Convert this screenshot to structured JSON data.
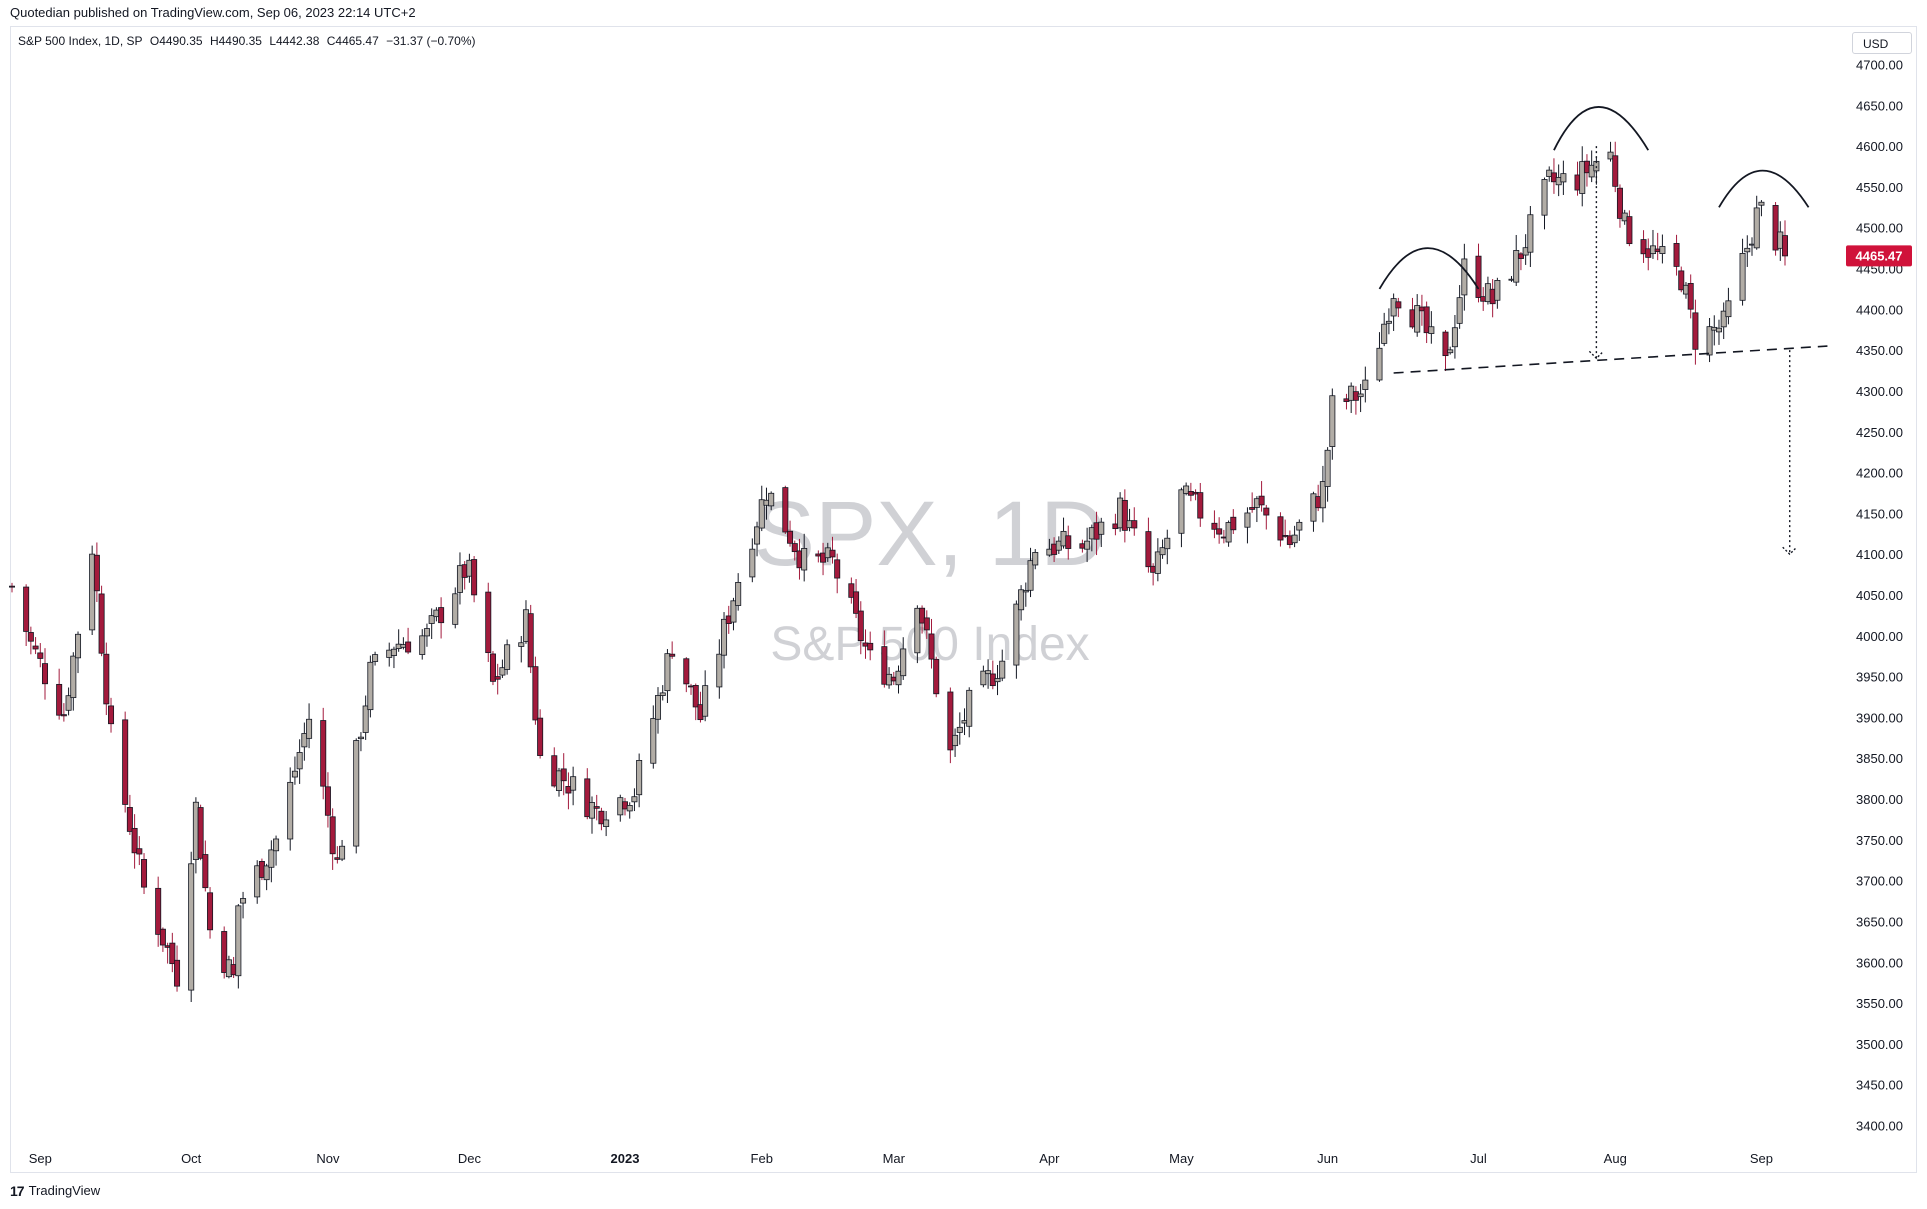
{
  "header": {
    "published": "Quotedian published on TradingView.com, Sep 06, 2023 22:14 UTC+2"
  },
  "legend": {
    "symbol": "S&P 500 Index, 1D, SP",
    "open": "O4490.35",
    "high": "H4490.35",
    "low": "L4442.38",
    "close": "C4465.47",
    "change": "−31.37 (−0.70%)"
  },
  "currency": "USD",
  "watermark": {
    "line1": "SPX, 1D",
    "line2": "S&P 500 Index"
  },
  "last_price_label": "4465.47",
  "footer": {
    "brand": "TradingView",
    "logo_text": "17"
  },
  "colors": {
    "up_candle_fill": "#b2ada6",
    "down_candle_fill": "#a31a3c",
    "candle_border": "#131722",
    "price_label_bg": "#d0123a",
    "watermark": "rgba(120,123,134,0.35)"
  },
  "chart_data": {
    "type": "candlestick",
    "y_axis": {
      "range": [
        3370,
        4730
      ],
      "ticks": [
        3400,
        3450,
        3500,
        3550,
        3600,
        3650,
        3700,
        3750,
        3800,
        3850,
        3900,
        3950,
        4000,
        4050,
        4100,
        4150,
        4200,
        4250,
        4300,
        4350,
        4400,
        4450,
        4500,
        4550,
        4600,
        4650,
        4700
      ],
      "tick_labels": [
        "3400.00",
        "3450.00",
        "3500.00",
        "3550.00",
        "3600.00",
        "3650.00",
        "3700.00",
        "3750.00",
        "3800.00",
        "3850.00",
        "3900.00",
        "3950.00",
        "4000.00",
        "4050.00",
        "4100.00",
        "4150.00",
        "4200.00",
        "4250.00",
        "4300.00",
        "4350.00",
        "4400.00",
        "4450.00",
        "4500.00",
        "4550.00",
        "4600.00",
        "4650.00",
        "4700.00"
      ]
    },
    "x_axis": {
      "start": "2022-08-26",
      "end": "2023-09-06",
      "labels": [
        {
          "label": "Sep",
          "date": "2022-09-01",
          "bold": false
        },
        {
          "label": "Oct",
          "date": "2022-10-03",
          "bold": false
        },
        {
          "label": "Nov",
          "date": "2022-11-01",
          "bold": false
        },
        {
          "label": "Dec",
          "date": "2022-12-01",
          "bold": false
        },
        {
          "label": "2023",
          "date": "2023-01-03",
          "bold": true
        },
        {
          "label": "Feb",
          "date": "2023-02-01",
          "bold": false
        },
        {
          "label": "Mar",
          "date": "2023-03-01",
          "bold": false
        },
        {
          "label": "Apr",
          "date": "2023-04-03",
          "bold": false
        },
        {
          "label": "May",
          "date": "2023-05-01",
          "bold": false
        },
        {
          "label": "Jun",
          "date": "2023-06-01",
          "bold": false
        },
        {
          "label": "Jul",
          "date": "2023-07-03",
          "bold": false
        },
        {
          "label": "Aug",
          "date": "2023-08-01",
          "bold": false
        },
        {
          "label": "Sep",
          "date": "2023-09-01",
          "bold": false
        }
      ]
    },
    "series": [
      {
        "close_path": [
          [
            "2022-08-26",
            4060
          ],
          [
            "2022-08-30",
            3990
          ],
          [
            "2022-09-06",
            3905
          ],
          [
            "2022-09-12",
            4110
          ],
          [
            "2022-09-16",
            3875
          ],
          [
            "2022-09-23",
            3690
          ],
          [
            "2022-09-30",
            3585
          ],
          [
            "2022-10-04",
            3790
          ],
          [
            "2022-10-07",
            3640
          ],
          [
            "2022-10-12",
            3580
          ],
          [
            "2022-10-13",
            3670
          ],
          [
            "2022-10-21",
            3750
          ],
          [
            "2022-10-28",
            3900
          ],
          [
            "2022-11-03",
            3720
          ],
          [
            "2022-11-10",
            3955
          ],
          [
            "2022-11-15",
            3990
          ],
          [
            "2022-11-22",
            4000
          ],
          [
            "2022-11-30",
            4080
          ],
          [
            "2022-12-01",
            4075
          ],
          [
            "2022-12-06",
            3940
          ],
          [
            "2022-12-13",
            4020
          ],
          [
            "2022-12-16",
            3850
          ],
          [
            "2022-12-22",
            3820
          ],
          [
            "2022-12-28",
            3785
          ],
          [
            "2023-01-05",
            3810
          ],
          [
            "2023-01-13",
            3990
          ],
          [
            "2023-01-19",
            3900
          ],
          [
            "2023-01-27",
            4070
          ],
          [
            "2023-02-02",
            4180
          ],
          [
            "2023-02-10",
            4090
          ],
          [
            "2023-02-16",
            4090
          ],
          [
            "2023-02-24",
            3970
          ],
          [
            "2023-03-01",
            3950
          ],
          [
            "2023-03-06",
            4050
          ],
          [
            "2023-03-13",
            3855
          ],
          [
            "2023-03-17",
            3915
          ],
          [
            "2023-03-24",
            3970
          ],
          [
            "2023-03-31",
            4110
          ],
          [
            "2023-04-10",
            4110
          ],
          [
            "2023-04-18",
            4155
          ],
          [
            "2023-04-25",
            4070
          ],
          [
            "2023-05-01",
            4170
          ],
          [
            "2023-05-10",
            4130
          ],
          [
            "2023-05-17",
            4160
          ],
          [
            "2023-05-24",
            4115
          ],
          [
            "2023-05-31",
            4180
          ],
          [
            "2023-06-02",
            4280
          ],
          [
            "2023-06-09",
            4300
          ],
          [
            "2023-06-15",
            4425
          ],
          [
            "2023-06-20",
            4390
          ],
          [
            "2023-06-26",
            4330
          ],
          [
            "2023-06-30",
            4450
          ],
          [
            "2023-07-06",
            4410
          ],
          [
            "2023-07-12",
            4470
          ],
          [
            "2023-07-18",
            4555
          ],
          [
            "2023-07-24",
            4560
          ],
          [
            "2023-07-28",
            4582
          ],
          [
            "2023-07-31",
            4589
          ],
          [
            "2023-08-03",
            4500
          ],
          [
            "2023-08-09",
            4470
          ],
          [
            "2023-08-15",
            4440
          ],
          [
            "2023-08-18",
            4365
          ],
          [
            "2023-08-24",
            4380
          ],
          [
            "2023-08-31",
            4515
          ],
          [
            "2023-09-01",
            4520
          ],
          [
            "2023-09-06",
            4465.47
          ]
        ]
      }
    ],
    "annotations": {
      "neckline": {
        "from": [
          "2023-06-15",
          4322
        ],
        "to": [
          "2023-09-15",
          4355
        ],
        "style": "dashed"
      },
      "arcs": [
        {
          "from": [
            "2023-06-12",
            4425
          ],
          "peak": [
            "2023-06-22",
            4475
          ],
          "to": [
            "2023-07-03",
            4425
          ]
        },
        {
          "from": [
            "2023-07-19",
            4595
          ],
          "peak": [
            "2023-07-28",
            4648
          ],
          "to": [
            "2023-08-08",
            4595
          ]
        },
        {
          "from": [
            "2023-08-23",
            4525
          ],
          "peak": [
            "2023-09-01",
            4570
          ],
          "to": [
            "2023-09-11",
            4525
          ]
        }
      ],
      "projections": [
        {
          "x": "2023-07-28",
          "from": 4600,
          "to": 4340,
          "style": "dotted"
        },
        {
          "x": "2023-09-07",
          "from": 4350,
          "to": 4100,
          "style": "dotted"
        }
      ]
    }
  }
}
